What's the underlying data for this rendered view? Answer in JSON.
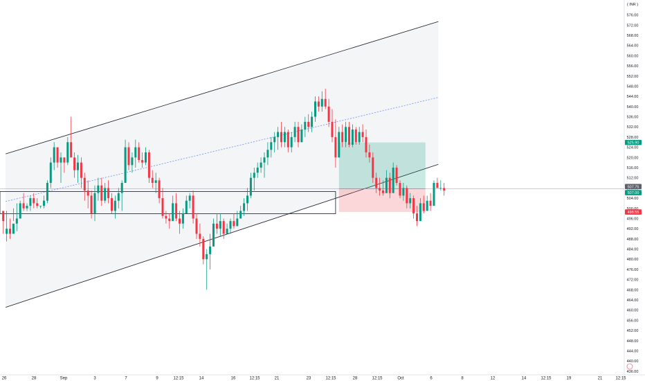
{
  "currency_label": "( INR )",
  "chart_data": {
    "type": "candlestick",
    "y_axis": {
      "ylim": [
        434.6,
        579.7
      ],
      "tick_labels": [
        "576.00",
        "572.00",
        "568.00",
        "564.00",
        "560.00",
        "556.00",
        "552.00",
        "548.00",
        "544.00",
        "540.00",
        "536.00",
        "532.00",
        "528.00",
        "524.00",
        "520.00",
        "516.00",
        "512.00",
        "508.00",
        "504.00",
        "500.00",
        "496.00",
        "492.00",
        "488.00",
        "484.00",
        "480.00",
        "476.00",
        "472.00",
        "468.00",
        "464.00",
        "460.00",
        "456.00",
        "452.00",
        "448.00",
        "444.00",
        "440.00",
        "436.00"
      ]
    },
    "x_axis": {
      "tick_labels": [
        "26",
        "28",
        "Sep",
        "3",
        "7",
        "9",
        "12:15",
        "14",
        "16",
        "12:15",
        "21",
        "23",
        "12:15",
        "28",
        "12:15",
        "Oct",
        "6",
        "8",
        "12",
        "14",
        "12:15",
        "19",
        "21",
        "12:15"
      ]
    },
    "price_tags": [
      {
        "value": "525.90",
        "color": "#089981"
      },
      {
        "value": "507.75",
        "color": "#5d606b"
      },
      {
        "value": "507.00",
        "color": "#089981"
      },
      {
        "value": "498.55",
        "color": "#f23645"
      }
    ],
    "candles": [
      [
        499,
        498,
        490,
        495
      ],
      [
        490,
        487,
        499,
        492
      ],
      [
        492,
        488,
        496,
        490
      ],
      [
        490,
        495,
        500,
        494
      ],
      [
        494,
        491,
        502,
        496
      ],
      [
        496,
        496,
        503,
        502
      ],
      [
        502,
        499,
        506,
        500
      ],
      [
        500,
        499,
        502,
        501
      ],
      [
        501,
        499,
        505,
        504
      ],
      [
        504,
        500,
        506,
        502
      ],
      [
        502,
        500,
        504,
        501
      ],
      [
        501,
        500,
        501,
        501
      ],
      [
        501,
        500,
        505,
        503
      ],
      [
        503,
        502,
        511,
        510
      ],
      [
        510,
        508,
        520,
        518
      ],
      [
        518,
        515,
        526,
        524
      ],
      [
        524,
        516,
        522,
        518
      ],
      [
        518,
        510,
        522,
        520
      ],
      [
        520,
        514,
        520,
        518
      ],
      [
        518,
        517,
        528,
        526
      ],
      [
        526,
        522,
        536,
        520
      ],
      [
        520,
        512,
        522,
        515
      ],
      [
        515,
        510,
        521,
        518
      ],
      [
        518,
        508,
        520,
        512
      ],
      [
        512,
        503,
        514,
        507
      ],
      [
        507,
        500,
        511,
        505
      ],
      [
        505,
        496,
        507,
        498
      ],
      [
        498,
        495,
        509,
        506
      ],
      [
        506,
        503,
        512,
        509
      ],
      [
        509,
        501,
        512,
        503
      ],
      [
        503,
        502,
        510,
        508
      ],
      [
        508,
        502,
        511,
        504
      ],
      [
        504,
        498,
        506,
        499
      ],
      [
        499,
        496,
        505,
        503
      ],
      [
        503,
        500,
        508,
        506
      ],
      [
        506,
        499,
        511,
        510
      ],
      [
        510,
        510,
        527,
        524
      ],
      [
        524,
        515,
        526,
        517
      ],
      [
        517,
        514,
        522,
        520
      ],
      [
        520,
        516,
        527,
        524
      ],
      [
        524,
        518,
        526,
        519
      ],
      [
        519,
        516,
        522,
        518
      ],
      [
        518,
        517,
        524,
        522
      ],
      [
        522,
        510,
        523,
        512
      ],
      [
        512,
        508,
        515,
        510
      ],
      [
        510,
        506,
        514,
        511
      ],
      [
        511,
        502,
        512,
        504
      ],
      [
        504,
        496,
        508,
        497
      ],
      [
        497,
        494,
        499,
        496
      ],
      [
        496,
        492,
        498,
        495
      ],
      [
        495,
        495,
        505,
        502
      ],
      [
        502,
        495,
        506,
        496
      ],
      [
        496,
        490,
        499,
        494
      ],
      [
        494,
        492,
        500,
        498
      ],
      [
        498,
        499,
        505,
        503
      ],
      [
        503,
        500,
        506,
        505
      ],
      [
        505,
        494,
        507,
        496
      ],
      [
        496,
        488,
        498,
        490
      ],
      [
        490,
        485,
        494,
        488
      ],
      [
        488,
        478,
        489,
        480
      ],
      [
        480,
        468,
        484,
        482
      ],
      [
        482,
        476,
        490,
        485
      ],
      [
        485,
        487,
        496,
        494
      ],
      [
        494,
        490,
        498,
        492
      ],
      [
        492,
        489,
        498,
        495
      ],
      [
        495,
        488,
        496,
        490
      ],
      [
        490,
        490,
        494,
        492
      ],
      [
        492,
        490,
        496,
        495
      ],
      [
        495,
        492,
        498,
        493
      ],
      [
        493,
        493,
        499,
        496
      ],
      [
        496,
        496,
        501,
        499
      ],
      [
        499,
        497,
        504,
        502
      ],
      [
        502,
        499,
        508,
        505
      ],
      [
        505,
        504,
        514,
        512
      ],
      [
        512,
        507,
        516,
        514
      ],
      [
        514,
        512,
        518,
        516
      ],
      [
        516,
        514,
        520,
        518
      ],
      [
        518,
        512,
        522,
        520
      ],
      [
        520,
        517,
        526,
        523
      ],
      [
        523,
        520,
        528,
        526
      ],
      [
        526,
        522,
        530,
        528
      ],
      [
        528,
        523,
        532,
        530
      ],
      [
        530,
        524,
        534,
        526
      ],
      [
        526,
        524,
        532,
        530
      ],
      [
        530,
        522,
        531,
        524
      ],
      [
        524,
        522,
        530,
        528
      ],
      [
        528,
        526,
        534,
        532
      ],
      [
        532,
        524,
        534,
        526
      ],
      [
        526,
        526,
        533,
        531
      ],
      [
        531,
        528,
        536,
        534
      ],
      [
        534,
        530,
        537,
        532
      ],
      [
        532,
        530,
        538,
        536
      ],
      [
        536,
        534,
        544,
        542
      ],
      [
        542,
        538,
        544,
        540
      ],
      [
        540,
        538,
        546,
        543
      ],
      [
        543,
        539,
        547,
        540
      ],
      [
        540,
        532,
        543,
        534
      ],
      [
        534,
        526,
        539,
        528
      ],
      [
        528,
        516,
        535,
        520
      ],
      [
        520,
        520,
        532,
        530
      ],
      [
        530,
        524,
        533,
        526
      ],
      [
        526,
        524,
        534,
        532
      ],
      [
        532,
        524,
        534,
        525
      ],
      [
        525,
        524,
        533,
        531
      ],
      [
        531,
        525,
        532,
        526
      ],
      [
        526,
        525,
        532,
        530
      ],
      [
        530,
        526,
        533,
        528
      ],
      [
        528,
        520,
        531,
        522
      ],
      [
        522,
        518,
        525,
        520
      ],
      [
        520,
        510,
        522,
        512
      ],
      [
        512,
        506,
        514,
        508
      ],
      [
        508,
        505,
        512,
        507
      ],
      [
        507,
        505,
        511,
        506
      ],
      [
        506,
        506,
        515,
        512
      ],
      [
        512,
        504,
        514,
        506
      ],
      [
        506,
        506,
        518,
        516
      ],
      [
        516,
        509,
        517,
        510
      ],
      [
        510,
        504,
        511,
        505
      ],
      [
        505,
        503,
        510,
        508
      ],
      [
        508,
        500,
        509,
        502
      ],
      [
        502,
        500,
        506,
        504
      ],
      [
        504,
        496,
        505,
        498
      ],
      [
        498,
        493,
        501,
        495
      ],
      [
        495,
        495,
        504,
        502
      ],
      [
        502,
        498,
        505,
        499
      ],
      [
        499,
        499,
        505,
        503
      ],
      [
        503,
        499,
        506,
        501
      ],
      [
        501,
        501,
        511,
        510
      ],
      [
        510,
        509,
        512,
        508
      ],
      [
        508,
        507,
        511,
        508
      ],
      [
        508,
        505,
        510,
        507
      ]
    ],
    "channel": {
      "upper": [
        [
          0.7,
          521.4
        ],
        [
          128.3,
          573.4
        ]
      ],
      "lower": [
        [
          0.7,
          461.1
        ],
        [
          128.3,
          517.3
        ]
      ],
      "middle_dashed": [
        [
          0.7,
          502.7
        ],
        [
          128.3,
          543.6
        ]
      ]
    },
    "horizontal_lines": [
      507.75
    ],
    "support_box": {
      "x0": 0,
      "x1": 98,
      "y_top": 506.6,
      "y_bottom": 497.9
    },
    "position": {
      "x0": 99,
      "x1": 124.5,
      "entry": 507.75,
      "target": 525.9,
      "stop": 498.55
    }
  }
}
